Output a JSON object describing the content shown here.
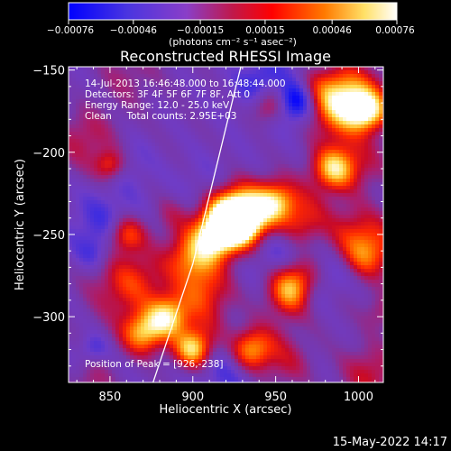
{
  "chart_data": {
    "type": "heatmap",
    "title": "Reconstructed RHESSI Image",
    "xlabel": "Heliocentric X (arcsec)",
    "ylabel": "Heliocentric Y (arcsec)",
    "xlim": [
      825,
      1015
    ],
    "ylim": [
      -340,
      -148
    ],
    "xticks": [
      {
        "value": 850,
        "label": "850"
      },
      {
        "value": 900,
        "label": "900"
      },
      {
        "value": 950,
        "label": "950"
      },
      {
        "value": 1000,
        "label": "1000"
      }
    ],
    "yticks": [
      {
        "value": -150,
        "label": "−150"
      },
      {
        "value": -200,
        "label": "−200"
      },
      {
        "value": -250,
        "label": "−250"
      },
      {
        "value": -300,
        "label": "−300"
      }
    ],
    "colorbar": {
      "range": [
        -0.00076,
        0.00076
      ],
      "ticks": [
        {
          "value": -0.00076,
          "label": "−0.00076"
        },
        {
          "value": -0.00046,
          "label": "−0.00046"
        },
        {
          "value": -0.00015,
          "label": "−0.00015"
        },
        {
          "value": 0.00015,
          "label": "0.00015"
        },
        {
          "value": 0.00046,
          "label": "0.00046"
        },
        {
          "value": 0.00076,
          "label": "0.00076"
        }
      ],
      "unit_label": "(photons cm⁻² s⁻¹ asec⁻²)"
    },
    "annotations": {
      "time_range": "14-Jul-2013 16:46:48.000 to 16:48:44.000",
      "detectors": "Detectors: 3F 4F 5F 6F 7F 8F, Att 0",
      "energy": "Energy Range: 12.0 - 25.0 keV",
      "clean": "Clean     Total counts: 2.95E+03",
      "peak": "Position of Peak = [926,-238]"
    },
    "peak": {
      "x": 926,
      "y": -238
    },
    "limb_curve": [
      [
        876,
        -340
      ],
      [
        900,
        -268
      ],
      [
        926,
        -160
      ],
      [
        929,
        -148
      ]
    ],
    "grid": false,
    "footer_timestamp": "15-May-2022 14:17"
  },
  "colors": {
    "background": "#000000",
    "text": "#ffffff",
    "colorbar_stops": [
      "#0000ff",
      "#5a33d8",
      "#8a3ec8",
      "#c0184a",
      "#ff0000",
      "#ff7a00",
      "#ffe066",
      "#ffffff"
    ]
  }
}
